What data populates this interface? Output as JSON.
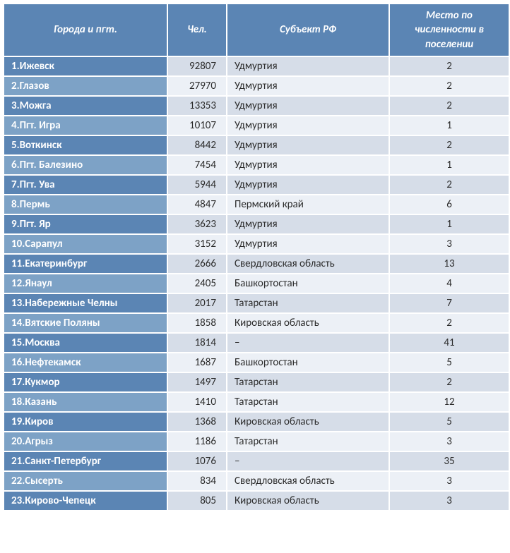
{
  "colors": {
    "header_bg": "#5b85b4",
    "header_fg": "#ffffff",
    "row_odd_city_bg": "#5b85b4",
    "row_odd_city_fg": "#ffffff",
    "row_even_city_bg": "#7da2c6",
    "row_even_city_fg": "#ffffff",
    "row_odd_cell_bg": "#d6dde8",
    "row_even_cell_bg": "#ecf0f6",
    "cell_fg": "#2b2b2b"
  },
  "table": {
    "type": "table",
    "columns": [
      {
        "key": "city",
        "label": "Города и пгт.",
        "align": "left"
      },
      {
        "key": "pop",
        "label": "Чел.",
        "align": "right"
      },
      {
        "key": "region",
        "label": "Субъект РФ",
        "align": "left"
      },
      {
        "key": "rank",
        "label": "Место по численности в поселении",
        "align": "center"
      }
    ],
    "rows": [
      {
        "n": 1,
        "city": "Ижевск",
        "pop": 92807,
        "region": "Удмуртия",
        "rank": 2
      },
      {
        "n": 2,
        "city": "Глазов",
        "pop": 27970,
        "region": "Удмуртия",
        "rank": 2
      },
      {
        "n": 3,
        "city": "Можга",
        "pop": 13353,
        "region": "Удмуртия",
        "rank": 2
      },
      {
        "n": 4,
        "city": "Пгт. Игра",
        "pop": 10107,
        "region": "Удмуртия",
        "rank": 1
      },
      {
        "n": 5,
        "city": "Воткинск",
        "pop": 8442,
        "region": "Удмуртия",
        "rank": 2
      },
      {
        "n": 6,
        "city": "Пгт. Балезино",
        "pop": 7454,
        "region": "Удмуртия",
        "rank": 1
      },
      {
        "n": 7,
        "city": "Пгт. Ува",
        "pop": 5944,
        "region": "Удмуртия",
        "rank": 2
      },
      {
        "n": 8,
        "city": "Пермь",
        "pop": 4847,
        "region": "Пермский край",
        "rank": 6
      },
      {
        "n": 9,
        "city": "Пгт. Яр",
        "pop": 3623,
        "region": "Удмуртия",
        "rank": 1
      },
      {
        "n": 10,
        "city": "Сарапул",
        "pop": 3152,
        "region": "Удмуртия",
        "rank": 3
      },
      {
        "n": 11,
        "city": "Екатеринбург",
        "pop": 2666,
        "region": "Свердловская область",
        "rank": 13
      },
      {
        "n": 12,
        "city": "Янаул",
        "pop": 2405,
        "region": "Башкортостан",
        "rank": 4
      },
      {
        "n": 13,
        "city": "Набережные Челны",
        "pop": 2017,
        "region": "Татарстан",
        "rank": 7
      },
      {
        "n": 14,
        "city": "Вятские Поляны",
        "pop": 1858,
        "region": "Кировская область",
        "rank": 2
      },
      {
        "n": 15,
        "city": "Москва",
        "pop": 1814,
        "region": "–",
        "rank": 41
      },
      {
        "n": 16,
        "city": "Нефтекамск",
        "pop": 1687,
        "region": "Башкортостан",
        "rank": 5
      },
      {
        "n": 17,
        "city": "Кукмор",
        "pop": 1497,
        "region": "Татарстан",
        "rank": 2
      },
      {
        "n": 18,
        "city": "Казань",
        "pop": 1410,
        "region": "Татарстан",
        "rank": 12
      },
      {
        "n": 19,
        "city": "Киров",
        "pop": 1368,
        "region": "Кировская область",
        "rank": 5
      },
      {
        "n": 20,
        "city": "Агрыз",
        "pop": 1186,
        "region": "Татарстан",
        "rank": 3
      },
      {
        "n": 21,
        "city": "Санкт-Петербург",
        "pop": 1076,
        "region": "–",
        "rank": 35
      },
      {
        "n": 22,
        "city": "Сысерть",
        "pop": 834,
        "region": "Свердловская область",
        "rank": 3
      },
      {
        "n": 23,
        "city": "Кирово-Чепецк",
        "pop": 805,
        "region": "Кировская область",
        "rank": 3
      }
    ]
  }
}
